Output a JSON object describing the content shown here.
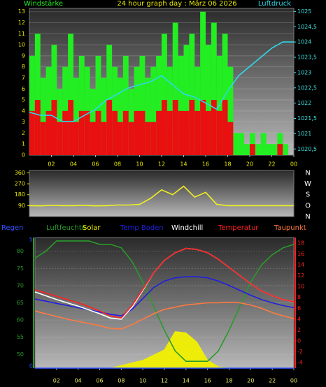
{
  "chart_data": [
    {
      "type": "bar",
      "title": "24 hour graph day : März 06 2026",
      "ylabel": "Windstärke",
      "y2label": "Luftdruck",
      "x": [
        0,
        0.5,
        1,
        1.5,
        2,
        2.5,
        3,
        3.5,
        4,
        4.5,
        5,
        5.5,
        6,
        6.5,
        7,
        7.5,
        8,
        8.5,
        9,
        9.5,
        10,
        10.5,
        11,
        11.5,
        12,
        12.5,
        13,
        13.5,
        14,
        14.5,
        15,
        15.5,
        16,
        16.5,
        17,
        17.5,
        18,
        18.5,
        19,
        19.5,
        20,
        20.5,
        21,
        21.5,
        22,
        22.5,
        23,
        23.5
      ],
      "xlim": [
        0,
        24
      ],
      "xticks": [
        {
          "value": 2,
          "label": "02"
        },
        {
          "value": 4,
          "label": "04"
        },
        {
          "value": 6,
          "label": "06"
        },
        {
          "value": 8,
          "label": "08"
        },
        10,
        12,
        14,
        16,
        18,
        20,
        22,
        {
          "value": 24,
          "label": "00"
        }
      ],
      "ylim": [
        0,
        13.3
      ],
      "yticks": [
        0,
        1,
        2,
        3,
        4,
        5,
        6,
        7,
        8,
        9,
        10,
        11,
        12,
        13
      ],
      "y2lim": [
        1020.3,
        1025.1
      ],
      "y2ticks": [
        {
          "value": 1020.5,
          "label": "1020,5"
        },
        1021,
        {
          "value": 1021.5,
          "label": "1021,5"
        },
        1022,
        {
          "value": 1022.5,
          "label": "1022,5"
        },
        1023,
        {
          "value": 1023.5,
          "label": "1023,5"
        },
        1024,
        {
          "value": 1024.5,
          "label": "1024,5"
        },
        1025
      ],
      "grid": true,
      "series": [
        {
          "color": "#22ee22",
          "values": [
            9,
            11,
            7,
            8,
            10,
            6,
            8,
            11,
            7,
            9,
            8,
            6,
            9,
            7,
            10,
            8,
            7,
            9,
            6,
            8,
            9,
            7,
            8,
            9,
            11,
            8,
            12,
            9,
            10,
            11,
            8,
            13,
            10,
            12,
            9,
            11,
            8,
            2,
            2,
            1,
            2,
            1,
            2,
            1,
            1,
            2,
            1,
            0
          ]
        },
        {
          "color": "#e81010",
          "values": [
            4,
            5,
            3,
            4,
            5,
            3,
            4,
            5,
            3,
            4,
            4,
            3,
            4,
            3,
            5,
            4,
            3,
            4,
            3,
            4,
            4,
            3,
            3,
            4,
            5,
            4,
            5,
            4,
            4,
            5,
            4,
            5,
            4,
            5,
            4,
            5,
            3,
            0,
            0,
            0,
            1,
            0,
            0,
            0,
            0,
            1,
            0,
            0
          ]
        },
        {
          "type": "line",
          "axis": "y2",
          "color": "#30d8e8",
          "x": [
            0,
            1,
            2,
            3,
            4,
            5,
            6,
            7,
            8,
            9,
            10,
            11,
            12,
            13,
            14,
            15,
            16,
            17,
            18,
            19,
            20,
            21,
            22,
            23,
            24
          ],
          "values": [
            1021.7,
            1021.6,
            1021.6,
            1021.4,
            1021.4,
            1021.6,
            1021.8,
            1022.1,
            1022.3,
            1022.5,
            1022.6,
            1022.7,
            1022.9,
            1022.6,
            1022.3,
            1022.2,
            1022.0,
            1021.8,
            1022.4,
            1022.9,
            1023.2,
            1023.5,
            1023.8,
            1024.0,
            1024.0
          ]
        }
      ]
    },
    {
      "type": "line",
      "x": [
        0,
        1,
        2,
        3,
        4,
        5,
        6,
        7,
        8,
        9,
        10,
        11,
        12,
        13,
        14,
        15,
        16,
        17,
        18,
        19,
        20,
        21,
        22,
        23,
        24
      ],
      "xlim": [
        0,
        24
      ],
      "ylim": [
        0,
        380
      ],
      "yticks": [
        90,
        180,
        270,
        360
      ],
      "y2lim": [
        0,
        380
      ],
      "y2ticks": [
        {
          "value": 360,
          "label": "N"
        },
        {
          "value": 270,
          "label": "W"
        },
        {
          "value": 180,
          "label": "S"
        },
        {
          "value": 90,
          "label": "O"
        },
        {
          "value": 0,
          "label": "N"
        }
      ],
      "series": [
        {
          "color": "#f0f020",
          "values": [
            90,
            88,
            92,
            90,
            90,
            92,
            88,
            90,
            95,
            95,
            100,
            150,
            220,
            180,
            250,
            160,
            200,
            100,
            90,
            90,
            90,
            90,
            90,
            90,
            90
          ]
        }
      ]
    },
    {
      "type": "line",
      "x": [
        0,
        1,
        2,
        3,
        4,
        5,
        6,
        7,
        8,
        9,
        10,
        11,
        12,
        13,
        14,
        15,
        16,
        17,
        18,
        19,
        20,
        21,
        22,
        23,
        24
      ],
      "xlim": [
        0,
        24
      ],
      "xticks": [
        {
          "value": 2,
          "label": "02"
        },
        {
          "value": 4,
          "label": "04"
        },
        {
          "value": 6,
          "label": "06"
        },
        {
          "value": 8,
          "label": "08"
        },
        10,
        12,
        14,
        16,
        18,
        20,
        22,
        {
          "value": 24,
          "label": "00"
        }
      ],
      "ylim": [
        46,
        84
      ],
      "yticks": [
        50,
        55,
        60,
        65,
        70,
        75,
        80
      ],
      "y2lim": [
        -5,
        19
      ],
      "y2ticks": [
        -4,
        -2,
        0,
        2,
        4,
        6,
        8,
        10,
        12,
        14,
        16,
        18
      ],
      "y3lim": [
        0,
        5
      ],
      "y3ticks": [
        0,
        5
      ],
      "y4lim": [
        0,
        1000
      ],
      "grid": true,
      "series": [
        {
          "name": "Regen",
          "color": "#3050ff",
          "axis": "y3",
          "values": [
            0,
            0,
            0,
            0,
            0,
            0,
            0,
            0,
            0,
            0,
            0,
            0,
            0,
            0,
            0,
            0,
            0,
            0,
            0,
            0,
            0,
            0,
            0,
            0,
            0
          ]
        },
        {
          "name": "Luftfeuchte",
          "color": "#2a9a2a",
          "values": [
            78,
            80,
            83,
            83,
            83,
            83,
            82,
            82,
            81,
            77,
            71,
            64,
            57,
            51,
            48,
            48,
            48,
            51,
            57,
            64,
            71,
            76,
            79,
            81,
            82
          ]
        },
        {
          "name": "Solar",
          "color": "#f0f000",
          "type": "area",
          "axis": "y4",
          "values": [
            0,
            0,
            0,
            0,
            0,
            0,
            0,
            0,
            20,
            40,
            60,
            100,
            140,
            280,
            270,
            200,
            60,
            10,
            0,
            0,
            0,
            0,
            0,
            0,
            0
          ]
        },
        {
          "name": "Temp Boden",
          "color": "#2020e0",
          "axis": "y2",
          "values": [
            7.7,
            7.3,
            6.9,
            6.5,
            6.1,
            5.7,
            5.3,
            4.9,
            4.6,
            5.8,
            7.8,
            9.8,
            11,
            11.6,
            11.8,
            11.8,
            11.6,
            11,
            10.2,
            9.3,
            8.4,
            7.6,
            7,
            6.5,
            6.1
          ]
        },
        {
          "name": "Windchill",
          "color": "#ffffff",
          "axis": "y2",
          "values": [
            9.0,
            8.3,
            7.6,
            7.0,
            6.4,
            5.7,
            5.0,
            4.2,
            4.0,
            6.2,
            9.3,
            12.5,
            14.8,
            16.2,
            17,
            16.8,
            16.2,
            15,
            13.5,
            12,
            10.5,
            9.2,
            8.3,
            7.6,
            7.2
          ]
        },
        {
          "name": "Temperatur",
          "color": "#ff2020",
          "axis": "y2",
          "values": [
            9.4,
            8.8,
            8.2,
            7.6,
            7,
            6.3,
            5.5,
            4.6,
            4.2,
            6.5,
            9.5,
            12.5,
            14.8,
            16.2,
            17,
            16.8,
            16.2,
            15,
            13.5,
            12,
            10.5,
            9.2,
            8.3,
            7.6,
            7.2
          ]
        },
        {
          "name": "Taupunkt",
          "color": "#ff7a40",
          "axis": "y2",
          "values": [
            5.5,
            5,
            4.5,
            4,
            3.6,
            3.2,
            2.8,
            2.3,
            2.2,
            3,
            4,
            5,
            5.8,
            6.2,
            6.6,
            6.8,
            7,
            7,
            7.1,
            7,
            6.6,
            6,
            5.2,
            4.6,
            4.1
          ]
        }
      ]
    }
  ]
}
